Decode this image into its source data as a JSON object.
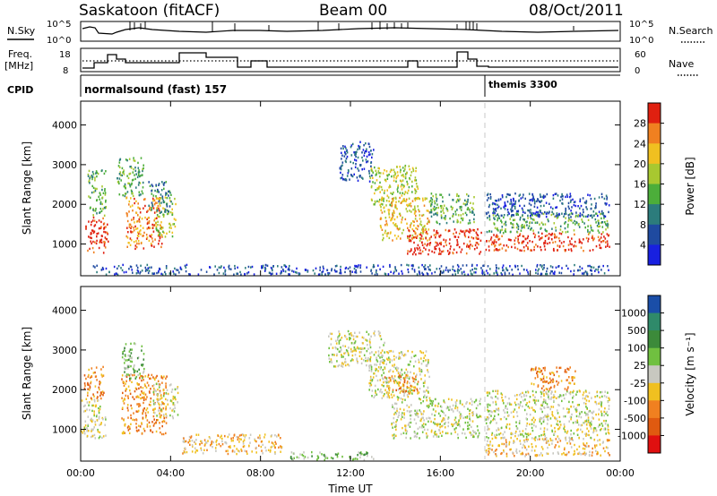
{
  "header": {
    "station": "Saskatoon (fitACF)",
    "beam": "Beam 00",
    "date": "08/Oct/2011"
  },
  "top_panels": {
    "nsky_label": "N.Sky",
    "nsky_ticks": [
      "10^5",
      "10^0"
    ],
    "nsearch_label": "N.Search",
    "nsearch_ticks": [
      "10^5",
      "10^0"
    ],
    "freq_label_1": "Freq.",
    "freq_label_2": "[MHz]",
    "freq_ticks": [
      "18",
      "8"
    ],
    "nave_label": "Nave",
    "nave_ticks": [
      "60",
      "0"
    ],
    "cpid_label": "CPID",
    "cpid_entries": [
      {
        "name": "normalsound (fast) 157",
        "start_hour": 0
      },
      {
        "name": "themis 3300",
        "start_hour": 18
      }
    ]
  },
  "chart_data": [
    {
      "type": "heatmap",
      "title": "",
      "xlabel": "Time UT",
      "ylabel": "Slant Range [km]",
      "x_ticks": [
        "00:00",
        "04:00",
        "08:00",
        "12:00",
        "16:00",
        "20:00",
        "00:00"
      ],
      "y_ticks": [
        "1000",
        "2000",
        "3000",
        "4000"
      ],
      "xlim": [
        0,
        24
      ],
      "ylim": [
        200,
        4600
      ],
      "colorbar_label": "Power [dB]",
      "colorbar_ticks": [
        "4",
        "8",
        "12",
        "16",
        "20",
        "24",
        "28"
      ],
      "colors": [
        "#1820e0",
        "#1f4aa0",
        "#2c7c7c",
        "#4cae3a",
        "#a8c830",
        "#f0c020",
        "#f08020",
        "#e02010"
      ],
      "scatter_regions": [
        {
          "x": [
            0.2,
            1.2
          ],
          "y": [
            800,
            1700
          ],
          "level": 7
        },
        {
          "x": [
            0.3,
            1.1
          ],
          "y": [
            1700,
            2900
          ],
          "level": 3
        },
        {
          "x": [
            2.0,
            3.6
          ],
          "y": [
            900,
            2200
          ],
          "level": 6
        },
        {
          "x": [
            1.6,
            2.8
          ],
          "y": [
            2200,
            3200
          ],
          "level": 3
        },
        {
          "x": [
            3.3,
            4.2
          ],
          "y": [
            1200,
            2200
          ],
          "level": 4
        },
        {
          "x": [
            3.0,
            4.0
          ],
          "y": [
            1800,
            2600
          ],
          "level": 2
        },
        {
          "x": [
            0.5,
            23.5
          ],
          "y": [
            250,
            500
          ],
          "level": 1
        },
        {
          "x": [
            11.5,
            13.0
          ],
          "y": [
            2600,
            3600
          ],
          "level": 1
        },
        {
          "x": [
            12.8,
            15.0
          ],
          "y": [
            2000,
            3000
          ],
          "level": 4
        },
        {
          "x": [
            13.3,
            15.5
          ],
          "y": [
            1100,
            2200
          ],
          "level": 5
        },
        {
          "x": [
            14.5,
            17.8
          ],
          "y": [
            750,
            1400
          ],
          "level": 7
        },
        {
          "x": [
            15.5,
            17.5
          ],
          "y": [
            1500,
            2300
          ],
          "level": 3
        },
        {
          "x": [
            18.0,
            23.5
          ],
          "y": [
            850,
            1300
          ],
          "level": 7
        },
        {
          "x": [
            18.0,
            23.5
          ],
          "y": [
            1300,
            1800
          ],
          "level": 3
        },
        {
          "x": [
            18.0,
            23.5
          ],
          "y": [
            1700,
            2300
          ],
          "level": 1
        }
      ]
    },
    {
      "type": "heatmap",
      "title": "",
      "xlabel": "Time UT",
      "ylabel": "Slant Range [km]",
      "x_ticks": [
        "00:00",
        "04:00",
        "08:00",
        "12:00",
        "16:00",
        "20:00",
        "00:00"
      ],
      "y_ticks": [
        "1000",
        "2000",
        "3000",
        "4000"
      ],
      "xlim": [
        0,
        24
      ],
      "ylim": [
        200,
        4600
      ],
      "colorbar_label": "Velocity [m s⁻¹]",
      "colorbar_ticks": [
        "1000",
        "500",
        "100",
        "25",
        "-25",
        "-100",
        "-500",
        "-1000"
      ],
      "colors": [
        "#1a4ea8",
        "#2f8a6a",
        "#3c8a3a",
        "#70c040",
        "#c8c8c0",
        "#f0c020",
        "#f08020",
        "#e05a10",
        "#e01010"
      ],
      "scatter_regions": [
        {
          "x": [
            0.0,
            1.1
          ],
          "y": [
            800,
            1800
          ],
          "level": 4
        },
        {
          "x": [
            0.1,
            1.0
          ],
          "y": [
            1800,
            2600
          ],
          "level": 6
        },
        {
          "x": [
            1.8,
            3.8
          ],
          "y": [
            900,
            2400
          ],
          "level": 6
        },
        {
          "x": [
            1.8,
            2.8
          ],
          "y": [
            2300,
            3200
          ],
          "level": 3
        },
        {
          "x": [
            3.2,
            4.3
          ],
          "y": [
            1300,
            2200
          ],
          "level": 4
        },
        {
          "x": [
            4.5,
            9.0
          ],
          "y": [
            400,
            900
          ],
          "level": 5
        },
        {
          "x": [
            9.0,
            13.0
          ],
          "y": [
            250,
            450
          ],
          "level": 3
        },
        {
          "x": [
            11.0,
            13.5
          ],
          "y": [
            2600,
            3500
          ],
          "level": 4
        },
        {
          "x": [
            12.8,
            15.5
          ],
          "y": [
            1800,
            3000
          ],
          "level": 4
        },
        {
          "x": [
            13.5,
            15.0
          ],
          "y": [
            1900,
            2400
          ],
          "level": 6
        },
        {
          "x": [
            13.8,
            17.8
          ],
          "y": [
            800,
            1800
          ],
          "level": 4
        },
        {
          "x": [
            18.0,
            23.5
          ],
          "y": [
            800,
            2000
          ],
          "level": 4
        },
        {
          "x": [
            18.0,
            23.5
          ],
          "y": [
            350,
            800
          ],
          "level": 5
        },
        {
          "x": [
            20.0,
            22.0
          ],
          "y": [
            2000,
            2600
          ],
          "level": 6
        }
      ]
    }
  ]
}
